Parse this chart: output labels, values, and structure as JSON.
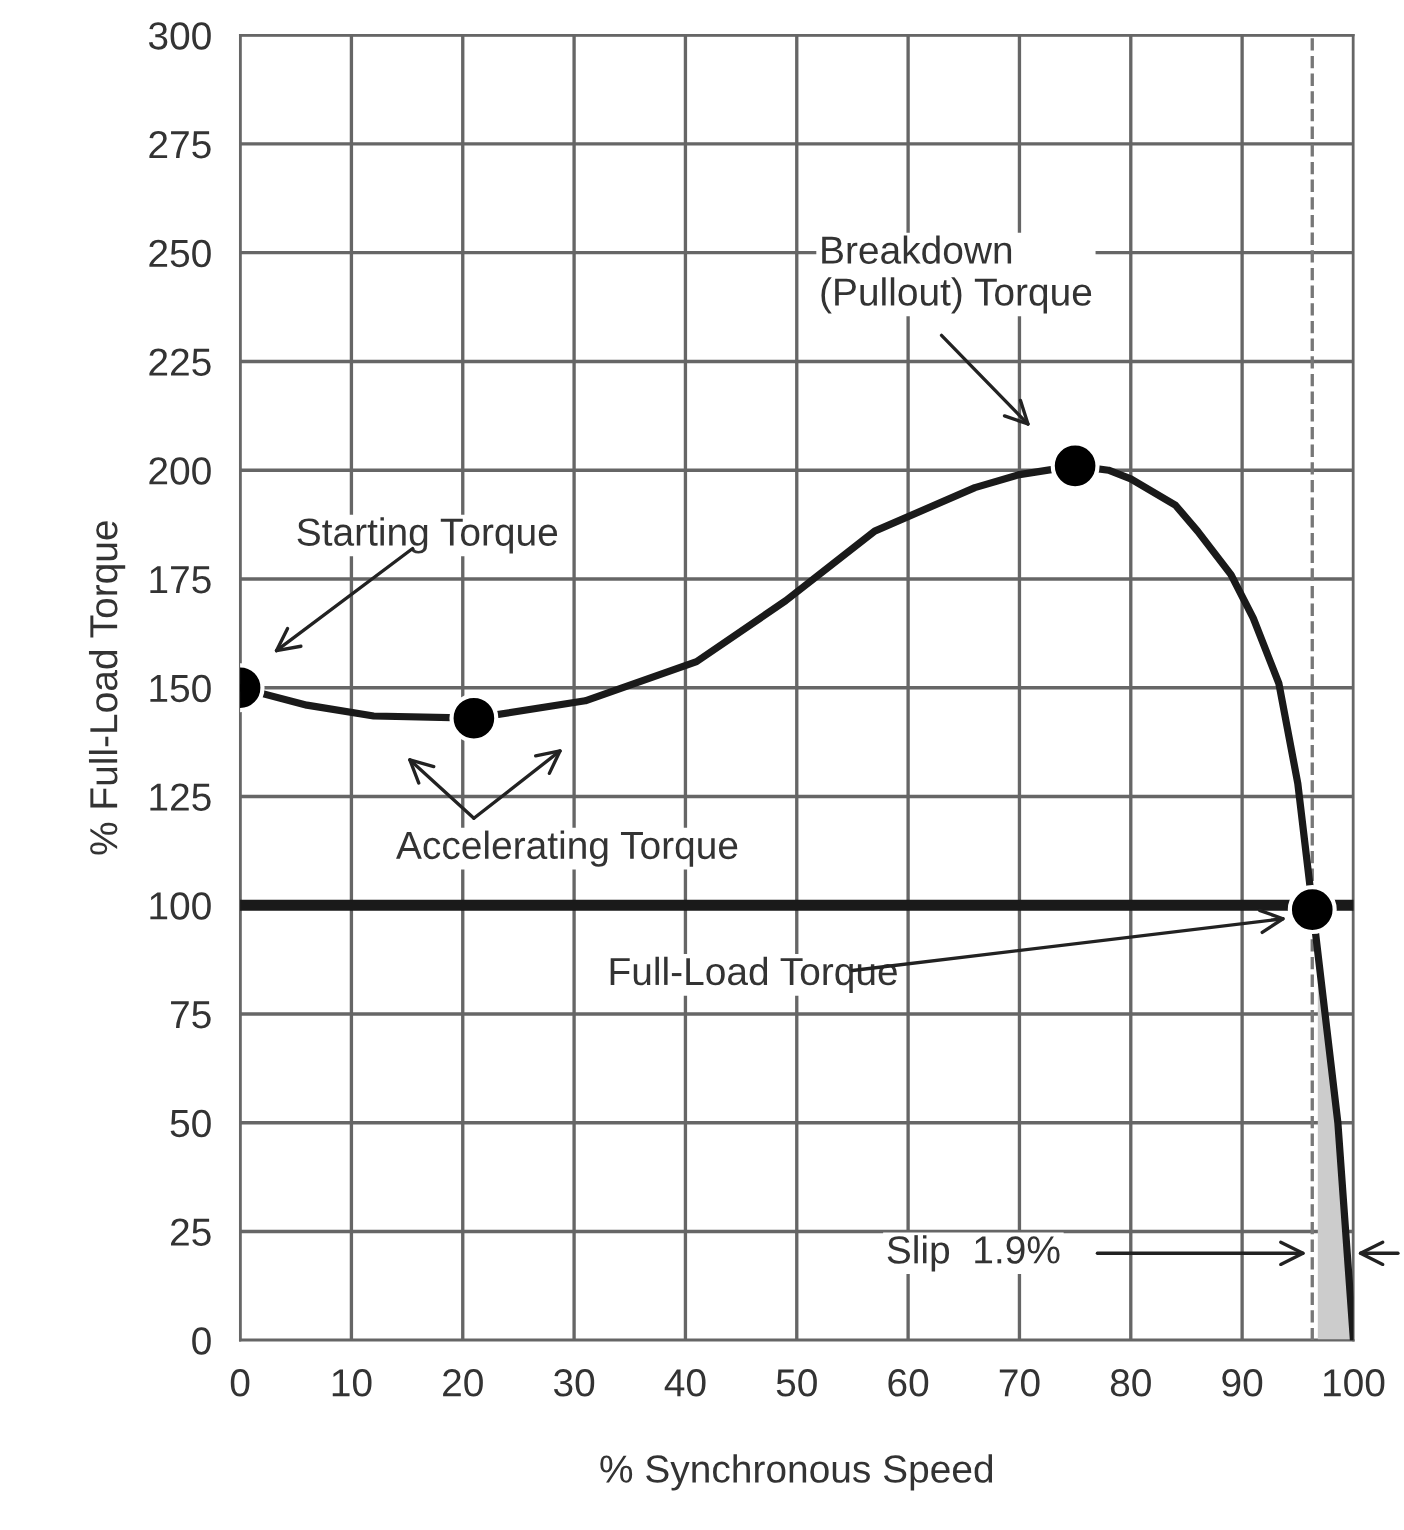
{
  "chart_data": {
    "type": "line",
    "xlabel": "% Synchronous Speed",
    "ylabel": "% Full-Load Torque",
    "xlim": [
      0,
      100
    ],
    "xticks": [
      0,
      10,
      20,
      30,
      40,
      50,
      60,
      70,
      80,
      90,
      100
    ],
    "ylim": [
      0,
      300
    ],
    "yticks": [
      0,
      25,
      50,
      75,
      100,
      125,
      150,
      175,
      200,
      225,
      250,
      275,
      300
    ],
    "grid": true,
    "series": [
      {
        "color": "#1a1a1a",
        "marker": "none",
        "line_style": "solid",
        "x": [
          0,
          6,
          12,
          21,
          31,
          41,
          49,
          57,
          66,
          70,
          75,
          78,
          80,
          84,
          86,
          89,
          91,
          93.3,
          95,
          96.3,
          98.6,
          100
        ],
        "values": [
          150,
          146,
          143.5,
          143,
          147,
          156,
          170,
          186,
          196,
          199,
          201,
          200,
          198,
          192,
          186,
          176,
          166,
          151,
          128,
          100,
          50,
          0
        ]
      },
      {
        "type": "area",
        "color": "#cccccc",
        "x": [
          96.8,
          98.6,
          100
        ],
        "values": [
          90,
          50,
          0
        ]
      },
      {
        "type": "scatter",
        "color": "#000000",
        "marker": "circle",
        "x": [
          0,
          21,
          75,
          96.3
        ],
        "values": [
          150,
          143,
          201,
          99
        ]
      }
    ],
    "ref_lines": [
      {
        "axis": "y",
        "value": 100,
        "color": "#1a1a1a",
        "line_style": "solid"
      },
      {
        "axis": "x",
        "value": 96.3,
        "color": "#777777",
        "line_style": "dashed"
      }
    ],
    "annotations": [
      "Starting Torque",
      "Accelerating Torque",
      "Breakdown\n(Pullout) Torque",
      {
        "text": "Full-Load Torque",
        "x": 94,
        "y": 97
      },
      "Slip  1.9%"
    ]
  }
}
